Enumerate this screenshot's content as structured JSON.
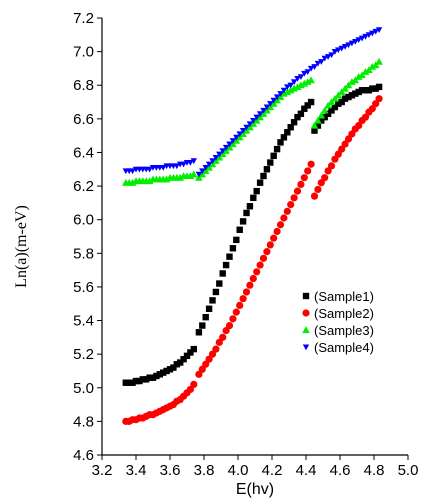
{
  "chart_data": {
    "type": "scatter",
    "xlabel": "E(hv)",
    "ylabel": "Ln(a)(m-eV)",
    "xlim": [
      3.2,
      5.0
    ],
    "ylim": [
      4.6,
      7.2
    ],
    "x_ticks": [
      "3.2",
      "3.4",
      "3.6",
      "3.8",
      "4.0",
      "4.2",
      "4.4",
      "4.6",
      "4.8",
      "5.0"
    ],
    "y_ticks": [
      "4.6",
      "4.8",
      "5.0",
      "5.2",
      "5.4",
      "5.6",
      "5.8",
      "6.0",
      "6.2",
      "6.4",
      "6.6",
      "6.8",
      "7.0",
      "7.2"
    ],
    "grid": false,
    "legend_position": "center-right",
    "series": [
      {
        "name": "(Sample1)",
        "marker": "square",
        "color": "#000000",
        "points": [
          [
            3.34,
            5.03
          ],
          [
            3.36,
            5.03
          ],
          [
            3.38,
            5.03
          ],
          [
            3.4,
            5.04
          ],
          [
            3.42,
            5.04
          ],
          [
            3.44,
            5.05
          ],
          [
            3.46,
            5.05
          ],
          [
            3.48,
            5.06
          ],
          [
            3.5,
            5.06
          ],
          [
            3.52,
            5.07
          ],
          [
            3.54,
            5.08
          ],
          [
            3.56,
            5.09
          ],
          [
            3.58,
            5.1
          ],
          [
            3.6,
            5.11
          ],
          [
            3.62,
            5.12
          ],
          [
            3.64,
            5.14
          ],
          [
            3.66,
            5.15
          ],
          [
            3.68,
            5.17
          ],
          [
            3.7,
            5.19
          ],
          [
            3.72,
            5.21
          ],
          [
            3.74,
            5.23
          ],
          [
            3.77,
            5.33
          ],
          [
            3.79,
            5.37
          ],
          [
            3.81,
            5.42
          ],
          [
            3.83,
            5.47
          ],
          [
            3.85,
            5.52
          ],
          [
            3.87,
            5.57
          ],
          [
            3.89,
            5.62
          ],
          [
            3.91,
            5.68
          ],
          [
            3.93,
            5.73
          ],
          [
            3.95,
            5.78
          ],
          [
            3.97,
            5.83
          ],
          [
            3.99,
            5.88
          ],
          [
            4.01,
            5.94
          ],
          [
            4.03,
            5.99
          ],
          [
            4.05,
            6.04
          ],
          [
            4.07,
            6.08
          ],
          [
            4.09,
            6.13
          ],
          [
            4.11,
            6.17
          ],
          [
            4.13,
            6.22
          ],
          [
            4.15,
            6.26
          ],
          [
            4.17,
            6.3
          ],
          [
            4.19,
            6.34
          ],
          [
            4.21,
            6.38
          ],
          [
            4.23,
            6.42
          ],
          [
            4.25,
            6.46
          ],
          [
            4.27,
            6.49
          ],
          [
            4.29,
            6.52
          ],
          [
            4.31,
            6.55
          ],
          [
            4.33,
            6.58
          ],
          [
            4.35,
            6.61
          ],
          [
            4.37,
            6.63
          ],
          [
            4.39,
            6.66
          ],
          [
            4.41,
            6.68
          ],
          [
            4.43,
            6.7
          ],
          [
            4.45,
            6.53
          ],
          [
            4.47,
            6.56
          ],
          [
            4.49,
            6.59
          ],
          [
            4.51,
            6.61
          ],
          [
            4.53,
            6.63
          ],
          [
            4.55,
            6.65
          ],
          [
            4.57,
            6.67
          ],
          [
            4.59,
            6.69
          ],
          [
            4.61,
            6.7
          ],
          [
            4.63,
            6.72
          ],
          [
            4.65,
            6.73
          ],
          [
            4.67,
            6.74
          ],
          [
            4.69,
            6.75
          ],
          [
            4.71,
            6.76
          ],
          [
            4.73,
            6.77
          ],
          [
            4.75,
            6.77
          ],
          [
            4.77,
            6.77
          ],
          [
            4.79,
            6.78
          ],
          [
            4.81,
            6.78
          ],
          [
            4.83,
            6.79
          ]
        ]
      },
      {
        "name": "(Sample2)",
        "marker": "circle",
        "color": "#ff0000",
        "points": [
          [
            3.34,
            4.8
          ],
          [
            3.36,
            4.8
          ],
          [
            3.38,
            4.81
          ],
          [
            3.4,
            4.81
          ],
          [
            3.42,
            4.82
          ],
          [
            3.44,
            4.82
          ],
          [
            3.46,
            4.83
          ],
          [
            3.48,
            4.84
          ],
          [
            3.5,
            4.84
          ],
          [
            3.52,
            4.85
          ],
          [
            3.54,
            4.86
          ],
          [
            3.56,
            4.87
          ],
          [
            3.58,
            4.88
          ],
          [
            3.6,
            4.89
          ],
          [
            3.62,
            4.9
          ],
          [
            3.64,
            4.92
          ],
          [
            3.66,
            4.93
          ],
          [
            3.68,
            4.95
          ],
          [
            3.7,
            4.97
          ],
          [
            3.72,
            4.99
          ],
          [
            3.74,
            5.02
          ],
          [
            3.77,
            5.08
          ],
          [
            3.79,
            5.11
          ],
          [
            3.81,
            5.14
          ],
          [
            3.83,
            5.17
          ],
          [
            3.85,
            5.2
          ],
          [
            3.87,
            5.23
          ],
          [
            3.89,
            5.27
          ],
          [
            3.91,
            5.3
          ],
          [
            3.93,
            5.34
          ],
          [
            3.95,
            5.37
          ],
          [
            3.97,
            5.41
          ],
          [
            3.99,
            5.45
          ],
          [
            4.01,
            5.49
          ],
          [
            4.03,
            5.53
          ],
          [
            4.05,
            5.57
          ],
          [
            4.07,
            5.61
          ],
          [
            4.09,
            5.65
          ],
          [
            4.11,
            5.69
          ],
          [
            4.13,
            5.73
          ],
          [
            4.15,
            5.77
          ],
          [
            4.17,
            5.81
          ],
          [
            4.19,
            5.85
          ],
          [
            4.21,
            5.89
          ],
          [
            4.23,
            5.93
          ],
          [
            4.25,
            5.97
          ],
          [
            4.27,
            6.01
          ],
          [
            4.29,
            6.05
          ],
          [
            4.31,
            6.09
          ],
          [
            4.33,
            6.13
          ],
          [
            4.35,
            6.17
          ],
          [
            4.37,
            6.21
          ],
          [
            4.39,
            6.25
          ],
          [
            4.41,
            6.29
          ],
          [
            4.43,
            6.33
          ],
          [
            4.45,
            6.14
          ],
          [
            4.47,
            6.18
          ],
          [
            4.49,
            6.22
          ],
          [
            4.51,
            6.25
          ],
          [
            4.53,
            6.29
          ],
          [
            4.55,
            6.32
          ],
          [
            4.57,
            6.36
          ],
          [
            4.59,
            6.39
          ],
          [
            4.61,
            6.42
          ],
          [
            4.63,
            6.45
          ],
          [
            4.65,
            6.48
          ],
          [
            4.67,
            6.51
          ],
          [
            4.69,
            6.54
          ],
          [
            4.71,
            6.56
          ],
          [
            4.73,
            6.59
          ],
          [
            4.75,
            6.61
          ],
          [
            4.77,
            6.64
          ],
          [
            4.79,
            6.66
          ],
          [
            4.81,
            6.69
          ],
          [
            4.83,
            6.72
          ]
        ]
      },
      {
        "name": "(Sample3)",
        "marker": "triangle-up",
        "color": "#00ee00",
        "points": [
          [
            3.34,
            6.22
          ],
          [
            3.36,
            6.22
          ],
          [
            3.38,
            6.22
          ],
          [
            3.4,
            6.23
          ],
          [
            3.42,
            6.23
          ],
          [
            3.44,
            6.23
          ],
          [
            3.46,
            6.23
          ],
          [
            3.48,
            6.23
          ],
          [
            3.5,
            6.24
          ],
          [
            3.52,
            6.24
          ],
          [
            3.54,
            6.24
          ],
          [
            3.56,
            6.24
          ],
          [
            3.58,
            6.24
          ],
          [
            3.6,
            6.25
          ],
          [
            3.62,
            6.25
          ],
          [
            3.64,
            6.25
          ],
          [
            3.66,
            6.25
          ],
          [
            3.68,
            6.26
          ],
          [
            3.7,
            6.26
          ],
          [
            3.72,
            6.26
          ],
          [
            3.74,
            6.27
          ],
          [
            3.77,
            6.25
          ],
          [
            3.79,
            6.27
          ],
          [
            3.81,
            6.29
          ],
          [
            3.83,
            6.31
          ],
          [
            3.85,
            6.33
          ],
          [
            3.87,
            6.35
          ],
          [
            3.89,
            6.37
          ],
          [
            3.91,
            6.39
          ],
          [
            3.93,
            6.41
          ],
          [
            3.95,
            6.43
          ],
          [
            3.97,
            6.45
          ],
          [
            3.99,
            6.47
          ],
          [
            4.01,
            6.49
          ],
          [
            4.03,
            6.51
          ],
          [
            4.05,
            6.53
          ],
          [
            4.07,
            6.55
          ],
          [
            4.09,
            6.57
          ],
          [
            4.11,
            6.59
          ],
          [
            4.13,
            6.61
          ],
          [
            4.15,
            6.63
          ],
          [
            4.17,
            6.65
          ],
          [
            4.19,
            6.67
          ],
          [
            4.21,
            6.69
          ],
          [
            4.23,
            6.71
          ],
          [
            4.25,
            6.73
          ],
          [
            4.27,
            6.75
          ],
          [
            4.29,
            6.76
          ],
          [
            4.31,
            6.77
          ],
          [
            4.33,
            6.78
          ],
          [
            4.35,
            6.79
          ],
          [
            4.37,
            6.8
          ],
          [
            4.39,
            6.81
          ],
          [
            4.41,
            6.82
          ],
          [
            4.43,
            6.83
          ],
          [
            4.45,
            6.56
          ],
          [
            4.47,
            6.59
          ],
          [
            4.49,
            6.62
          ],
          [
            4.51,
            6.65
          ],
          [
            4.53,
            6.68
          ],
          [
            4.55,
            6.7
          ],
          [
            4.57,
            6.72
          ],
          [
            4.59,
            6.74
          ],
          [
            4.61,
            6.76
          ],
          [
            4.63,
            6.78
          ],
          [
            4.65,
            6.8
          ],
          [
            4.67,
            6.82
          ],
          [
            4.69,
            6.83
          ],
          [
            4.71,
            6.85
          ],
          [
            4.73,
            6.86
          ],
          [
            4.75,
            6.88
          ],
          [
            4.77,
            6.89
          ],
          [
            4.79,
            6.91
          ],
          [
            4.81,
            6.92
          ],
          [
            4.83,
            6.94
          ]
        ]
      },
      {
        "name": "(Sample4)",
        "marker": "triangle-down",
        "color": "#0000ff",
        "points": [
          [
            3.34,
            6.29
          ],
          [
            3.36,
            6.29
          ],
          [
            3.38,
            6.29
          ],
          [
            3.4,
            6.3
          ],
          [
            3.42,
            6.3
          ],
          [
            3.44,
            6.3
          ],
          [
            3.46,
            6.3
          ],
          [
            3.48,
            6.3
          ],
          [
            3.5,
            6.31
          ],
          [
            3.52,
            6.31
          ],
          [
            3.54,
            6.31
          ],
          [
            3.56,
            6.31
          ],
          [
            3.58,
            6.32
          ],
          [
            3.6,
            6.32
          ],
          [
            3.62,
            6.32
          ],
          [
            3.64,
            6.32
          ],
          [
            3.66,
            6.33
          ],
          [
            3.68,
            6.33
          ],
          [
            3.7,
            6.34
          ],
          [
            3.72,
            6.34
          ],
          [
            3.74,
            6.35
          ],
          [
            3.77,
            6.27
          ],
          [
            3.79,
            6.29
          ],
          [
            3.81,
            6.31
          ],
          [
            3.83,
            6.33
          ],
          [
            3.85,
            6.35
          ],
          [
            3.87,
            6.37
          ],
          [
            3.89,
            6.39
          ],
          [
            3.91,
            6.41
          ],
          [
            3.93,
            6.43
          ],
          [
            3.95,
            6.45
          ],
          [
            3.97,
            6.47
          ],
          [
            3.99,
            6.49
          ],
          [
            4.01,
            6.51
          ],
          [
            4.03,
            6.53
          ],
          [
            4.05,
            6.55
          ],
          [
            4.07,
            6.57
          ],
          [
            4.09,
            6.59
          ],
          [
            4.11,
            6.61
          ],
          [
            4.13,
            6.63
          ],
          [
            4.15,
            6.65
          ],
          [
            4.17,
            6.67
          ],
          [
            4.19,
            6.69
          ],
          [
            4.21,
            6.71
          ],
          [
            4.23,
            6.73
          ],
          [
            4.25,
            6.75
          ],
          [
            4.27,
            6.77
          ],
          [
            4.29,
            6.79
          ],
          [
            4.31,
            6.8
          ],
          [
            4.33,
            6.82
          ],
          [
            4.35,
            6.84
          ],
          [
            4.37,
            6.85
          ],
          [
            4.39,
            6.87
          ],
          [
            4.41,
            6.88
          ],
          [
            4.43,
            6.9
          ],
          [
            4.45,
            6.91
          ],
          [
            4.47,
            6.93
          ],
          [
            4.49,
            6.94
          ],
          [
            4.51,
            6.96
          ],
          [
            4.53,
            6.97
          ],
          [
            4.55,
            6.98
          ],
          [
            4.57,
            7.0
          ],
          [
            4.59,
            7.01
          ],
          [
            4.61,
            7.02
          ],
          [
            4.63,
            7.03
          ],
          [
            4.65,
            7.04
          ],
          [
            4.67,
            7.05
          ],
          [
            4.69,
            7.06
          ],
          [
            4.71,
            7.07
          ],
          [
            4.73,
            7.08
          ],
          [
            4.75,
            7.09
          ],
          [
            4.77,
            7.1
          ],
          [
            4.79,
            7.11
          ],
          [
            4.81,
            7.12
          ],
          [
            4.83,
            7.13
          ]
        ]
      }
    ]
  }
}
